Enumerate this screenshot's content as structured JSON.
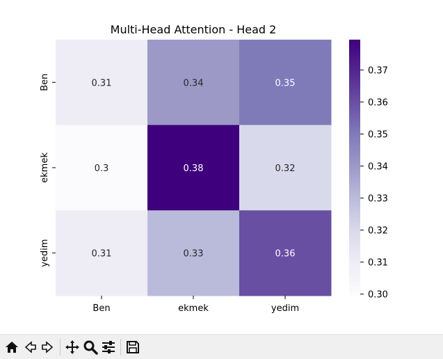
{
  "chart_data": {
    "type": "heatmap",
    "title": "Multi-Head Attention - Head 2",
    "x_categories": [
      "Ben",
      "ekmek",
      "yedim"
    ],
    "y_categories": [
      "Ben",
      "ekmek",
      "yedim"
    ],
    "values": [
      [
        0.31,
        0.34,
        0.35
      ],
      [
        0.3,
        0.38,
        0.32
      ],
      [
        0.31,
        0.33,
        0.36
      ]
    ],
    "cell_labels": [
      [
        "0.31",
        "0.34",
        "0.35"
      ],
      [
        "0.3",
        "0.38",
        "0.32"
      ],
      [
        "0.31",
        "0.33",
        "0.36"
      ]
    ],
    "colormap": "Purples",
    "colorbar": {
      "range": [
        0.2995,
        0.3795
      ],
      "ticks": [
        0.3,
        0.31,
        0.32,
        0.33,
        0.34,
        0.35,
        0.36,
        0.37
      ],
      "tick_labels": [
        "0.30",
        "0.31",
        "0.32",
        "0.33",
        "0.34",
        "0.35",
        "0.36",
        "0.37"
      ]
    }
  },
  "toolbar": {
    "buttons": [
      "home-icon",
      "back-icon",
      "forward-icon",
      "pan-icon",
      "zoom-icon",
      "configure-subplots-icon",
      "save-icon"
    ]
  }
}
